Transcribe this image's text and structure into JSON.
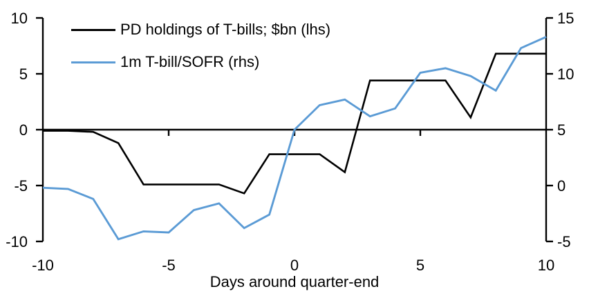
{
  "legend": {
    "items": [
      {
        "label": "PD holdings of T-bills; $bn (lhs)",
        "color": "#000000"
      },
      {
        "label": "1m T-bill/SOFR (rhs)",
        "color": "#5B9BD5"
      }
    ]
  },
  "chart_data": {
    "type": "line",
    "title": "",
    "xlabel": "Days around quarter-end",
    "ylabel_left": "",
    "ylabel_right": "",
    "grid": false,
    "legend_position": "top-left-inside",
    "axis_color": "#000000",
    "x": [
      -10,
      -9,
      -8,
      -7,
      -6,
      -5,
      -4,
      -3,
      -2,
      -1,
      0,
      1,
      2,
      3,
      4,
      5,
      6,
      7,
      8,
      9,
      10
    ],
    "xlim": [
      -10,
      10
    ],
    "x_tick_values": [
      -10,
      -5,
      0,
      5,
      10
    ],
    "x_tick_labels": [
      "-10",
      "-5",
      "0",
      "5",
      "10"
    ],
    "x_tick_marks": [
      -5,
      0,
      5
    ],
    "left_axis": {
      "ylim": [
        -10,
        10
      ],
      "tick_values": [
        10,
        5,
        0,
        -5,
        -10
      ],
      "tick_labels": [
        "10",
        "5",
        "0",
        "-5",
        "-10"
      ]
    },
    "right_axis": {
      "ylim": [
        -5,
        15
      ],
      "tick_values": [
        15,
        10,
        5,
        0,
        -5
      ],
      "tick_labels": [
        "15",
        "10",
        "5",
        "0",
        "-5"
      ]
    },
    "series": [
      {
        "name": "PD holdings of T-bills; $bn (lhs)",
        "axis": "left",
        "color": "#000000",
        "values": [
          -0.1,
          -0.1,
          -0.2,
          -1.2,
          -4.9,
          -4.9,
          -4.9,
          -4.9,
          -5.7,
          -2.2,
          -2.2,
          -2.2,
          -3.8,
          4.4,
          4.4,
          4.4,
          4.4,
          1.1,
          6.8,
          6.8,
          6.8
        ]
      },
      {
        "name": "1m T-bill/SOFR (rhs)",
        "axis": "right",
        "color": "#5B9BD5",
        "values": [
          -0.2,
          -0.3,
          -1.2,
          -4.8,
          -4.1,
          -4.2,
          -2.2,
          -1.6,
          -3.8,
          -2.6,
          5.0,
          7.2,
          7.7,
          6.2,
          6.9,
          10.1,
          10.5,
          9.8,
          8.5,
          12.3,
          13.3
        ]
      }
    ]
  }
}
